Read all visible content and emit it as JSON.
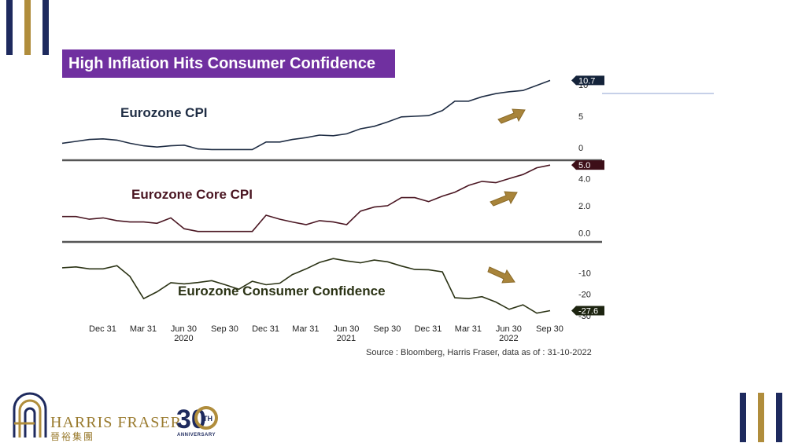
{
  "title": "High Inflation Hits Consumer Confidence",
  "source": "Source : Bloomberg, Harris Fraser, data as of : 31-10-2022",
  "brand": {
    "name_en": "HARRIS FRASER",
    "name_cn": "晉裕集團",
    "badge_number": "30",
    "badge_suffix": "TH",
    "badge_text": "ANNIVERSARY"
  },
  "colors": {
    "navy": "#1e2a5e",
    "gold": "#b08d3c",
    "purple": "#7030a0",
    "cpi_line": "#1f2d44",
    "core_line": "#4a1622",
    "conf_line": "#2b3315",
    "arrow": "#a8843a"
  },
  "x_axis": {
    "ticks": [
      {
        "date": "2019-12-31",
        "label": "Dec 31",
        "year": ""
      },
      {
        "date": "2020-03-31",
        "label": "Mar 31",
        "year": ""
      },
      {
        "date": "2020-06-30",
        "label": "Jun 30",
        "year": "2020"
      },
      {
        "date": "2020-09-30",
        "label": "Sep 30",
        "year": ""
      },
      {
        "date": "2020-12-31",
        "label": "Dec 31",
        "year": ""
      },
      {
        "date": "2021-03-31",
        "label": "Mar 31",
        "year": ""
      },
      {
        "date": "2021-06-30",
        "label": "Jun 30",
        "year": "2021"
      },
      {
        "date": "2021-09-30",
        "label": "Sep 30",
        "year": ""
      },
      {
        "date": "2021-12-31",
        "label": "Dec 31",
        "year": ""
      },
      {
        "date": "2022-03-31",
        "label": "Mar 31",
        "year": ""
      },
      {
        "date": "2022-06-30",
        "label": "Jun 30",
        "year": "2022"
      },
      {
        "date": "2022-09-30",
        "label": "Sep 30",
        "year": ""
      }
    ]
  },
  "chart_data": [
    {
      "type": "line",
      "label": "Eurozone CPI",
      "last_value_label": "10.7",
      "y_ticks": [
        0,
        5,
        10
      ],
      "ylim": [
        -1,
        11
      ],
      "x": [
        "2019-10",
        "2019-11",
        "2019-12",
        "2020-01",
        "2020-02",
        "2020-03",
        "2020-04",
        "2020-05",
        "2020-06",
        "2020-07",
        "2020-08",
        "2020-09",
        "2020-10",
        "2020-11",
        "2020-12",
        "2021-01",
        "2021-02",
        "2021-03",
        "2021-04",
        "2021-05",
        "2021-06",
        "2021-07",
        "2021-08",
        "2021-09",
        "2021-10",
        "2021-11",
        "2021-12",
        "2022-01",
        "2022-02",
        "2022-03",
        "2022-04",
        "2022-05",
        "2022-06",
        "2022-07",
        "2022-08",
        "2022-09",
        "2022-10"
      ],
      "values": [
        0.7,
        1.0,
        1.3,
        1.4,
        1.2,
        0.7,
        0.3,
        0.1,
        0.3,
        0.4,
        -0.2,
        -0.3,
        -0.3,
        -0.3,
        -0.3,
        0.9,
        0.9,
        1.3,
        1.6,
        2.0,
        1.9,
        2.2,
        3.0,
        3.4,
        4.1,
        4.9,
        5.0,
        5.1,
        5.9,
        7.4,
        7.4,
        8.1,
        8.6,
        8.9,
        9.1,
        9.9,
        10.7
      ]
    },
    {
      "type": "line",
      "label": "Eurozone Core CPI",
      "last_value_label": "5.0",
      "y_ticks": [
        0.0,
        2.0,
        4.0
      ],
      "ylim": [
        -0.5,
        5.3
      ],
      "x": [
        "2019-10",
        "2019-11",
        "2019-12",
        "2020-01",
        "2020-02",
        "2020-03",
        "2020-04",
        "2020-05",
        "2020-06",
        "2020-07",
        "2020-08",
        "2020-09",
        "2020-10",
        "2020-11",
        "2020-12",
        "2021-01",
        "2021-02",
        "2021-03",
        "2021-04",
        "2021-05",
        "2021-06",
        "2021-07",
        "2021-08",
        "2021-09",
        "2021-10",
        "2021-11",
        "2021-12",
        "2022-01",
        "2022-02",
        "2022-03",
        "2022-04",
        "2022-05",
        "2022-06",
        "2022-07",
        "2022-08",
        "2022-09",
        "2022-10"
      ],
      "values": [
        1.2,
        1.2,
        1.0,
        1.1,
        0.9,
        0.8,
        0.8,
        0.7,
        1.1,
        0.3,
        0.1,
        0.1,
        0.1,
        0.1,
        0.1,
        1.3,
        1.0,
        0.8,
        0.6,
        0.9,
        0.8,
        0.6,
        1.6,
        1.9,
        2.0,
        2.6,
        2.6,
        2.3,
        2.7,
        3.0,
        3.5,
        3.8,
        3.7,
        4.0,
        4.3,
        4.8,
        5.0
      ]
    },
    {
      "type": "line",
      "label": "Eurozone Consumer Confidence",
      "last_value_label": "-27.6",
      "y_ticks": [
        -10,
        -20,
        -30
      ],
      "ylim": [
        -30,
        3
      ],
      "x": [
        "2019-10",
        "2019-11",
        "2019-12",
        "2020-01",
        "2020-02",
        "2020-03",
        "2020-04",
        "2020-05",
        "2020-06",
        "2020-07",
        "2020-08",
        "2020-09",
        "2020-10",
        "2020-11",
        "2020-12",
        "2021-01",
        "2021-02",
        "2021-03",
        "2021-04",
        "2021-05",
        "2021-06",
        "2021-07",
        "2021-08",
        "2021-09",
        "2021-10",
        "2021-11",
        "2021-12",
        "2022-01",
        "2022-02",
        "2022-03",
        "2022-04",
        "2022-05",
        "2022-06",
        "2022-07",
        "2022-08",
        "2022-09",
        "2022-10"
      ],
      "values": [
        -7.6,
        -7.2,
        -8.1,
        -8.1,
        -6.6,
        -11.6,
        -22.0,
        -18.8,
        -14.6,
        -15.1,
        -14.5,
        -13.6,
        -15.5,
        -17.6,
        -13.9,
        -15.5,
        -14.8,
        -10.8,
        -8.1,
        -5.1,
        -3.3,
        -4.4,
        -5.3,
        -4.0,
        -4.8,
        -6.8,
        -8.4,
        -8.5,
        -9.5,
        -21.6,
        -22.0,
        -21.1,
        -23.6,
        -27.0,
        -24.9,
        -28.8,
        -27.6
      ]
    }
  ]
}
